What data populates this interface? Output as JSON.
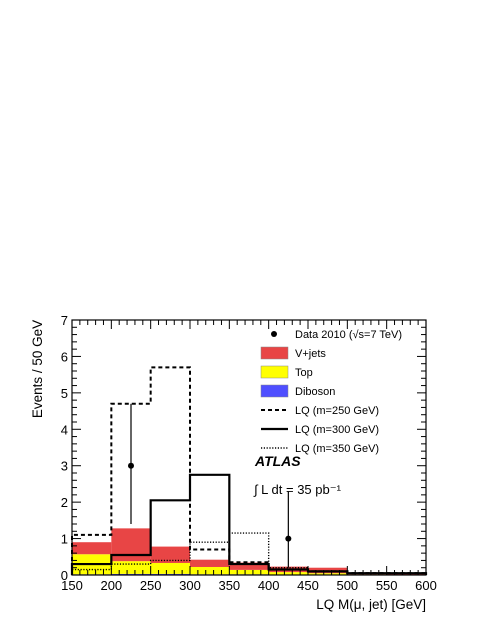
{
  "chart_data": {
    "type": "histogram",
    "xlabel": "LQ M(μ, jet) [GeV]",
    "ylabel": "Events / 50 GeV",
    "xlim": [
      150,
      600
    ],
    "ylim": [
      0,
      7
    ],
    "bin_edges": [
      150,
      200,
      250,
      300,
      350,
      400,
      450,
      500,
      550,
      600
    ],
    "x_ticks": [
      "150",
      "200",
      "250",
      "300",
      "350",
      "400",
      "450",
      "500",
      "550",
      "600"
    ],
    "y_ticks": [
      "0",
      "1",
      "2",
      "3",
      "4",
      "5",
      "6",
      "7"
    ],
    "stacked_backgrounds": [
      {
        "name": "Diboson",
        "color": "#4f4fff",
        "values": [
          0.02,
          0.03,
          0.03,
          0.02,
          0.02,
          0.01,
          0.01,
          0.0,
          0.0
        ]
      },
      {
        "name": "Top",
        "color": "#ffff00",
        "values": [
          0.55,
          0.35,
          0.3,
          0.2,
          0.12,
          0.07,
          0.04,
          0.02,
          0.01
        ]
      },
      {
        "name": "V+jets",
        "color": "#e84545",
        "values": [
          0.33,
          0.9,
          0.45,
          0.2,
          0.2,
          0.15,
          0.15,
          0.05,
          0.05
        ]
      }
    ],
    "signals": [
      {
        "name": "LQ (m=250 GeV)",
        "style": "dashed",
        "values": [
          1.1,
          4.7,
          5.7,
          0.7,
          0.35,
          0.15,
          0.1,
          0.05,
          0.05
        ]
      },
      {
        "name": "LQ (m=300 GeV)",
        "style": "solid",
        "values": [
          0.3,
          0.55,
          2.05,
          2.75,
          0.3,
          0.15,
          0.1,
          0.05,
          0.05
        ]
      },
      {
        "name": "LQ (m=350 GeV)",
        "style": "dotted",
        "values": [
          0.15,
          0.3,
          0.4,
          0.9,
          1.15,
          0.2,
          0.1,
          0.05,
          0.05
        ]
      }
    ],
    "data": {
      "name": "Data 2010 (√s=7 TeV)",
      "points": [
        {
          "x": 225,
          "y": 3,
          "err_low": 1.6,
          "err_high": 1.7
        },
        {
          "x": 425,
          "y": 1,
          "err_low": 0.8,
          "err_high": 1.3
        }
      ]
    },
    "annotations": {
      "experiment": "ATLAS",
      "luminosity": "∫ L dt = 35 pb⁻¹"
    },
    "legend_position": "top-right"
  }
}
